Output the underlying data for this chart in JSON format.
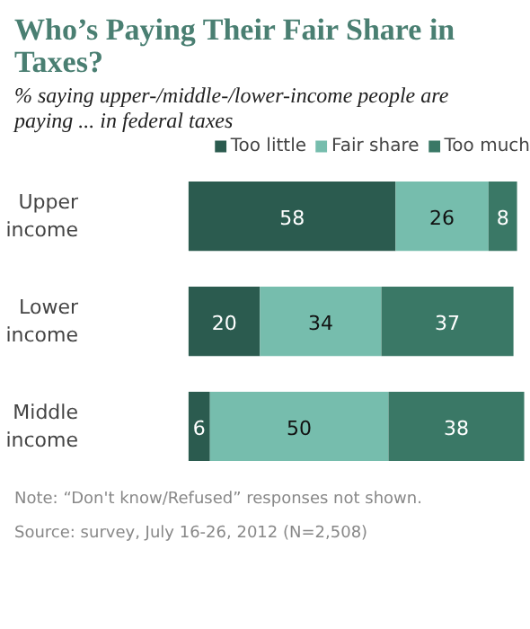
{
  "chart_data": {
    "type": "bar",
    "orientation": "horizontal",
    "stacked": true,
    "title": "Who’s Paying Their Fair Share in Taxes?",
    "subtitle": "% saying upper-/middle-/lower-income people are paying ... in federal taxes",
    "categories": [
      "Upper income",
      "Lower income",
      "Middle income"
    ],
    "series": [
      {
        "name": "Too little",
        "color": "#2b5b4f",
        "values": [
          58,
          20,
          6
        ]
      },
      {
        "name": "Fair share",
        "color": "#76bdad",
        "values": [
          26,
          34,
          50
        ]
      },
      {
        "name": "Too much",
        "color": "#3a7866",
        "values": [
          8,
          37,
          38
        ]
      }
    ],
    "data_labels": true,
    "legend": "top right",
    "tick_labels": "y",
    "grid": false,
    "annotations": [
      "Note: “Don't know/Refused” responses not shown.",
      "Source: survey, July 16-26, 2012 (N=2,508)"
    ]
  }
}
